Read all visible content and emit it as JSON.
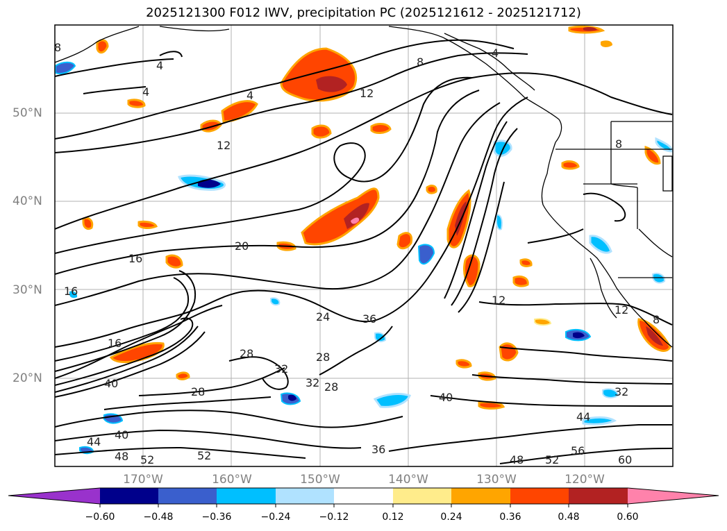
{
  "title": "2025121300 F012 IWV, precipitation PC (2025121612 - 2025121712)",
  "lat_labels": [
    "50°N",
    "40°N",
    "30°N",
    "20°N"
  ],
  "lon_labels": [
    "170°W",
    "160°W",
    "150°W",
    "140°W",
    "130°W",
    "120°W"
  ],
  "contour_labels": [
    "8",
    "4",
    "4",
    "4",
    "8",
    "4",
    "12",
    "12",
    "20",
    "16",
    "16",
    "16",
    "24",
    "36",
    "28",
    "28",
    "32",
    "32",
    "28",
    "28",
    "40",
    "40",
    "44",
    "48",
    "52",
    "52",
    "36",
    "40",
    "44",
    "48",
    "52",
    "56",
    "60",
    "32",
    "12",
    "12",
    "8",
    "8"
  ],
  "colorbar": {
    "colors": [
      "#9932cc",
      "#00008b",
      "#3a5fcd",
      "#00bfff",
      "#b0e2ff",
      "#ffffff",
      "#ffec8b",
      "#ffa500",
      "#ff4500",
      "#b22222",
      "#ff82ab"
    ],
    "ticks": [
      "−0.60",
      "−0.48",
      "−0.36",
      "−0.24",
      "−0.12",
      "0.12",
      "0.24",
      "0.36",
      "0.48",
      "0.60"
    ]
  }
}
